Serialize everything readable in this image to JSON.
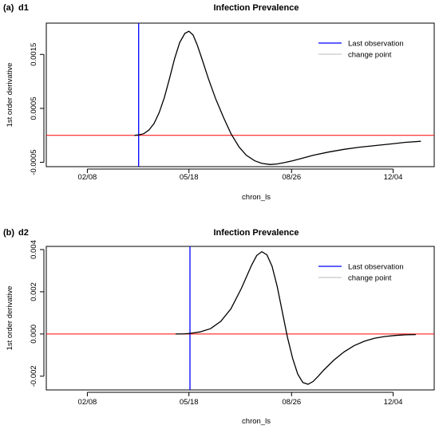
{
  "chart_data": [
    {
      "type": "line",
      "panel_label": "(a)",
      "panel_name": "d1",
      "title": "Infection Prevalence",
      "xlabel": "chron_ls",
      "ylabel": "1st order derivative",
      "x_ticks": [
        "02/08",
        "05/18",
        "08/26",
        "12/04"
      ],
      "y_ticks": [
        "-0.0005",
        "0.0005",
        "0.0015"
      ],
      "y_tick_values": [
        -0.0005,
        0.0005,
        0.0015
      ],
      "ylim": [
        -0.00058,
        0.00208
      ],
      "xlim": [
        -40,
        338
      ],
      "x_tick_days": [
        0,
        99,
        199,
        298
      ],
      "legend": [
        {
          "label": "Last observation",
          "color": "#0000ff"
        },
        {
          "label": "change point",
          "color": "#c8c8c8"
        }
      ],
      "vline_day": 50,
      "hline_y": 0,
      "hline_color": "#ff0000",
      "series": [
        {
          "name": "",
          "color": "#000000",
          "x": [
            46,
            50,
            55,
            60,
            65,
            70,
            75,
            80,
            85,
            90,
            95,
            99,
            103,
            107,
            112,
            118,
            125,
            133,
            140,
            148,
            155,
            163,
            170,
            178,
            185,
            193,
            200,
            210,
            220,
            235,
            250,
            265,
            280,
            295,
            310,
            325
          ],
          "y": [
            0.0,
            1e-05,
            3e-05,
            0.0001,
            0.00022,
            0.00042,
            0.0007,
            0.00105,
            0.00142,
            0.00172,
            0.00189,
            0.00193,
            0.00186,
            0.00168,
            0.0014,
            0.00105,
            0.00068,
            0.00032,
            3e-05,
            -0.00022,
            -0.00037,
            -0.00047,
            -0.00052,
            -0.00054,
            -0.00053,
            -0.0005,
            -0.00047,
            -0.00042,
            -0.00037,
            -0.00031,
            -0.00026,
            -0.00022,
            -0.00019,
            -0.00016,
            -0.00013,
            -0.00011
          ]
        }
      ]
    },
    {
      "type": "line",
      "panel_label": "(b)",
      "panel_name": "d2",
      "title": "Infection Prevalence",
      "xlabel": "chron_ls",
      "ylabel": "1st order derivative",
      "x_ticks": [
        "02/08",
        "05/18",
        "08/26",
        "12/04"
      ],
      "y_ticks": [
        "-0.002",
        "0.000",
        "0.002",
        "0.004"
      ],
      "y_tick_values": [
        -0.002,
        0.0,
        0.002,
        0.004
      ],
      "ylim": [
        -0.00265,
        0.00415
      ],
      "xlim": [
        -40,
        338
      ],
      "x_tick_days": [
        0,
        99,
        199,
        298
      ],
      "legend": [
        {
          "label": "Last observation",
          "color": "#0000ff"
        },
        {
          "label": "change point",
          "color": "#c8c8c8"
        }
      ],
      "vline_day": 100,
      "hline_y": 0,
      "hline_color": "#ff0000",
      "series": [
        {
          "name": "",
          "color": "#000000",
          "x": [
            86,
            95,
            100,
            110,
            120,
            130,
            140,
            150,
            160,
            165,
            170,
            175,
            180,
            185,
            190,
            195,
            200,
            205,
            210,
            215,
            220,
            225,
            230,
            240,
            250,
            260,
            270,
            280,
            290,
            300,
            310,
            320
          ],
          "y": [
            0.0,
            1e-05,
            3e-05,
            0.0001,
            0.00025,
            0.0006,
            0.0012,
            0.00215,
            0.00325,
            0.00372,
            0.0039,
            0.00375,
            0.0032,
            0.00225,
            0.00105,
            -0.00015,
            -0.00115,
            -0.0019,
            -0.0023,
            -0.00238,
            -0.00225,
            -0.002,
            -0.00173,
            -0.00125,
            -0.00085,
            -0.00055,
            -0.00034,
            -0.0002,
            -0.00012,
            -7e-05,
            -4e-05,
            -3e-05
          ]
        }
      ]
    }
  ]
}
